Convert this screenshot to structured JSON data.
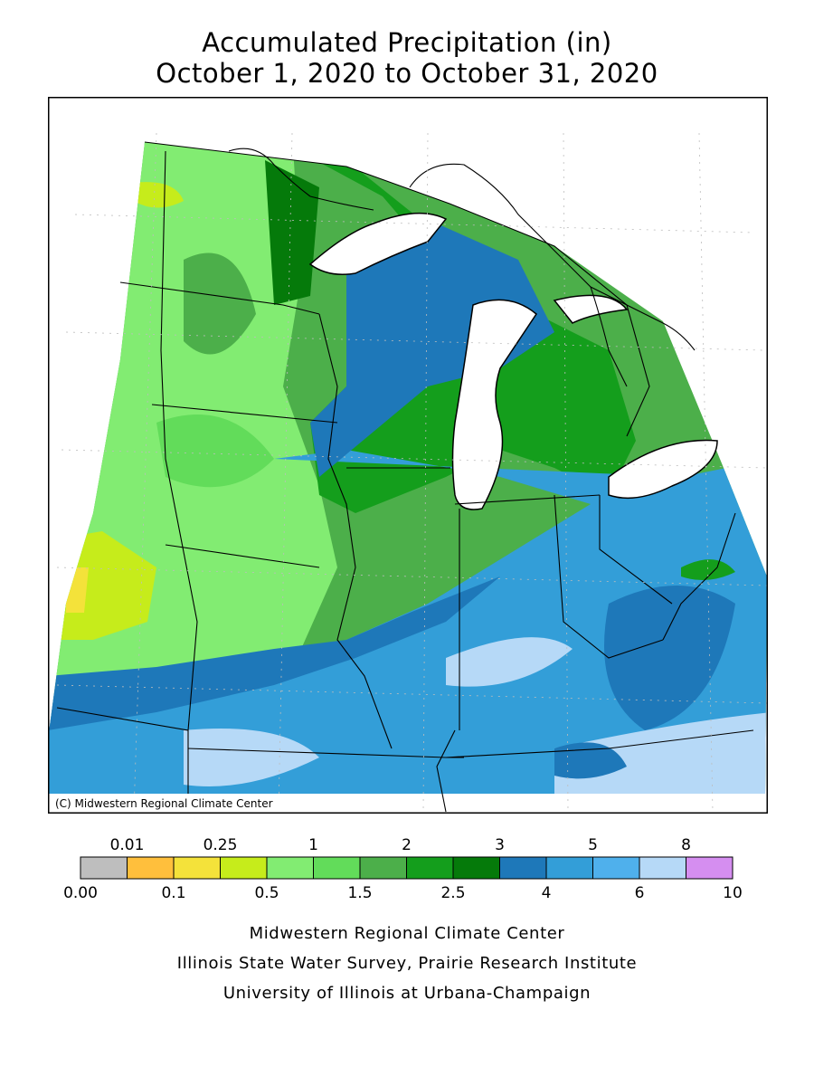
{
  "title": {
    "line1": "Accumulated Precipitation (in)",
    "line2": "October 1, 2020 to October 31, 2020"
  },
  "map": {
    "copyright": "(C) Midwestern Regional Climate Center"
  },
  "legend": {
    "bins": [
      {
        "color": "#bebebe"
      },
      {
        "color": "#ffbf3c"
      },
      {
        "color": "#f4e23a"
      },
      {
        "color": "#c6ec1b"
      },
      {
        "color": "#82ec72"
      },
      {
        "color": "#62dc5a"
      },
      {
        "color": "#4caf4a"
      },
      {
        "color": "#149e1c"
      },
      {
        "color": "#057a0a"
      },
      {
        "color": "#1e78b9"
      },
      {
        "color": "#339ed8"
      },
      {
        "color": "#4fb0ec"
      },
      {
        "color": "#b6d9f7"
      },
      {
        "color": "#d58ef0"
      }
    ],
    "top_labels": [
      {
        "text": "0.01",
        "edge": 1
      },
      {
        "text": "0.25",
        "edge": 3
      },
      {
        "text": "1",
        "edge": 5
      },
      {
        "text": "2",
        "edge": 7
      },
      {
        "text": "3",
        "edge": 9
      },
      {
        "text": "5",
        "edge": 11
      },
      {
        "text": "8",
        "edge": 13
      }
    ],
    "bottom_labels": [
      {
        "text": "0.00",
        "edge": 0
      },
      {
        "text": "0.1",
        "edge": 2
      },
      {
        "text": "0.5",
        "edge": 4
      },
      {
        "text": "1.5",
        "edge": 6
      },
      {
        "text": "2.5",
        "edge": 8
      },
      {
        "text": "4",
        "edge": 10
      },
      {
        "text": "6",
        "edge": 12
      },
      {
        "text": "10",
        "edge": 14
      }
    ]
  },
  "credits": {
    "line1": "Midwestern Regional Climate Center",
    "line2": "Illinois State Water Survey, Prairie Research Institute",
    "line3": "University of Illinois at Urbana-Champaign"
  }
}
